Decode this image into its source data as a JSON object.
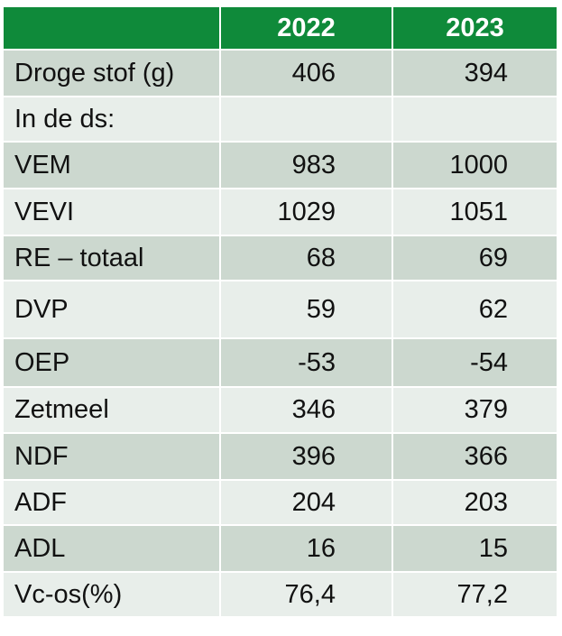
{
  "header": {
    "corner": "",
    "years": [
      "2022",
      "2023"
    ]
  },
  "rows": [
    {
      "label": "Droge stof (g)",
      "v2022": "406",
      "v2023": "394"
    },
    {
      "label": "In de ds:",
      "v2022": "",
      "v2023": ""
    },
    {
      "label": "VEM",
      "v2022": "983",
      "v2023": "1000"
    },
    {
      "label": "VEVI",
      "v2022": "1029",
      "v2023": "1051"
    },
    {
      "label": "RE – totaal",
      "v2022": "68",
      "v2023": "69"
    },
    {
      "label": "DVP",
      "v2022": "59",
      "v2023": "62"
    },
    {
      "label": "OEP",
      "v2022": "-53",
      "v2023": "-54"
    },
    {
      "label": "Zetmeel",
      "v2022": "346",
      "v2023": "379"
    },
    {
      "label": "NDF",
      "v2022": "396",
      "v2023": "366"
    },
    {
      "label": "ADF",
      "v2022": "204",
      "v2023": "203"
    },
    {
      "label": "ADL",
      "v2022": "16",
      "v2023": "15"
    },
    {
      "label": "Vc-os(%)",
      "v2022": "76,4",
      "v2023": "77,2"
    }
  ],
  "colors": {
    "header": "#0f8a3a",
    "row_dark": "#ccd8cf",
    "row_light": "#e8eeea",
    "header_text": "#ffffff"
  }
}
